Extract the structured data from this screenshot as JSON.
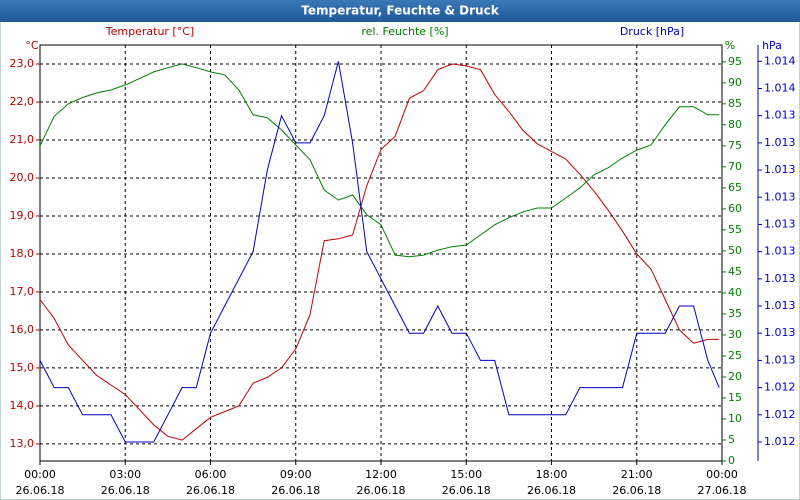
{
  "chart_data": {
    "type": "line",
    "title": "Temperatur, Feuchte & Druck",
    "y_unit": "°C",
    "y2_unit": "%",
    "y3_unit": "hPa",
    "x": [
      0,
      0.5,
      1,
      1.5,
      2,
      2.5,
      3,
      3.5,
      4,
      4.5,
      5,
      5.5,
      6,
      6.5,
      7,
      7.5,
      8,
      8.5,
      9,
      9.5,
      10,
      10.5,
      11,
      11.5,
      12,
      12.5,
      13,
      13.5,
      14,
      14.5,
      15,
      15.5,
      16,
      16.5,
      17,
      17.5,
      18,
      18.5,
      19,
      19.5,
      20,
      20.5,
      21,
      21.5,
      22,
      22.5,
      23,
      23.5,
      23.9
    ],
    "xlim": [
      0,
      24
    ],
    "xticks": [
      {
        "value": 0,
        "label": "00:00",
        "date": "26.06.18"
      },
      {
        "value": 3,
        "label": "03:00",
        "date": "26.06.18"
      },
      {
        "value": 6,
        "label": "06:00",
        "date": "26.06.18"
      },
      {
        "value": 9,
        "label": "09:00",
        "date": "26.06.18"
      },
      {
        "value": 12,
        "label": "12:00",
        "date": "26.06.18"
      },
      {
        "value": 15,
        "label": "15:00",
        "date": "26.06.18"
      },
      {
        "value": 18,
        "label": "18:00",
        "date": "26.06.18"
      },
      {
        "value": 21,
        "label": "21:00",
        "date": "26.06.18"
      },
      {
        "value": 24,
        "label": "00:00",
        "date": "27.06.18"
      }
    ],
    "ylim": [
      12.55,
      23.5
    ],
    "yticks": [
      {
        "value": 13,
        "label": "13,0"
      },
      {
        "value": 14,
        "label": "14,0"
      },
      {
        "value": 15,
        "label": "15,0"
      },
      {
        "value": 16,
        "label": "16,0"
      },
      {
        "value": 17,
        "label": "17,0"
      },
      {
        "value": 18,
        "label": "18,0"
      },
      {
        "value": 19,
        "label": "19,0"
      },
      {
        "value": 20,
        "label": "20,0"
      },
      {
        "value": 21,
        "label": "21,0"
      },
      {
        "value": 22,
        "label": "22,0"
      },
      {
        "value": 23,
        "label": "23,0"
      }
    ],
    "y2lim": [
      0,
      99
    ],
    "y2ticks": [
      0,
      5,
      10,
      15,
      20,
      25,
      30,
      35,
      40,
      45,
      50,
      55,
      60,
      65,
      70,
      75,
      80,
      85,
      90,
      95
    ],
    "y3lim": [
      1012.63,
      1014.16
    ],
    "y3ticks": [
      {
        "value": 1012.7,
        "label": "1.012"
      },
      {
        "value": 1012.8,
        "label": "1.012"
      },
      {
        "value": 1012.9,
        "label": "1.012"
      },
      {
        "value": 1013.0,
        "label": "1.013"
      },
      {
        "value": 1013.1,
        "label": "1.013"
      },
      {
        "value": 1013.2,
        "label": "1.013"
      },
      {
        "value": 1013.3,
        "label": "1.013"
      },
      {
        "value": 1013.4,
        "label": "1.013"
      },
      {
        "value": 1013.5,
        "label": "1.013"
      },
      {
        "value": 1013.6,
        "label": "1.013"
      },
      {
        "value": 1013.7,
        "label": "1.013"
      },
      {
        "value": 1013.8,
        "label": "1.013"
      },
      {
        "value": 1013.9,
        "label": "1.013"
      },
      {
        "value": 1014.0,
        "label": "1.014"
      },
      {
        "value": 1014.1,
        "label": "1.014"
      }
    ],
    "grid": true,
    "series": [
      {
        "name": "Temperatur [°C]",
        "color": "#c00000",
        "axis": "y",
        "values": [
          16.8,
          16.3,
          15.6,
          15.2,
          14.8,
          14.55,
          14.3,
          13.9,
          13.5,
          13.2,
          13.1,
          13.4,
          13.7,
          13.85,
          14.0,
          14.6,
          14.75,
          15.0,
          15.5,
          16.4,
          18.35,
          18.4,
          18.5,
          19.8,
          20.75,
          21.1,
          22.1,
          22.3,
          22.85,
          23.0,
          22.95,
          22.85,
          22.2,
          21.75,
          21.25,
          20.9,
          20.7,
          20.5,
          20.1,
          19.65,
          19.15,
          18.6,
          18.0,
          17.6,
          16.8,
          16.0,
          15.65,
          15.75,
          15.75
        ]
      },
      {
        "name": "rel. Feuchte [%]",
        "color": "#008000",
        "axis": "y2",
        "values": [
          75,
          82,
          85,
          86.5,
          87.6,
          88.3,
          89.5,
          91,
          92.6,
          93.6,
          94.5,
          93.6,
          92.6,
          91.9,
          88.3,
          82.4,
          81.7,
          78.8,
          75.2,
          71.7,
          64.5,
          62.1,
          63.3,
          58.6,
          56.2,
          49,
          48.6,
          49,
          50.2,
          51,
          51.4,
          53.8,
          56.2,
          57.9,
          59.3,
          60.2,
          60.2,
          62.6,
          65,
          68.1,
          69.8,
          72.1,
          74,
          75.2,
          80,
          84.3,
          84.3,
          82.4,
          82.4
        ]
      },
      {
        "name": "Druck [hPa]",
        "color": "#0000c0",
        "axis": "y3",
        "values": [
          1013.0,
          1012.9,
          1012.9,
          1012.8,
          1012.8,
          1012.8,
          1012.7,
          1012.7,
          1012.7,
          1012.8,
          1012.9,
          1012.9,
          1013.1,
          1013.2,
          1013.3,
          1013.4,
          1013.7,
          1013.9,
          1013.8,
          1013.8,
          1013.9,
          1014.1,
          1013.8,
          1013.4,
          1013.3,
          1013.2,
          1013.1,
          1013.1,
          1013.2,
          1013.1,
          1013.1,
          1013.0,
          1013.0,
          1012.8,
          1012.8,
          1012.8,
          1012.8,
          1012.8,
          1012.9,
          1012.9,
          1012.9,
          1012.9,
          1013.1,
          1013.1,
          1013.1,
          1013.2,
          1013.2,
          1013.0,
          1012.9
        ]
      }
    ]
  }
}
